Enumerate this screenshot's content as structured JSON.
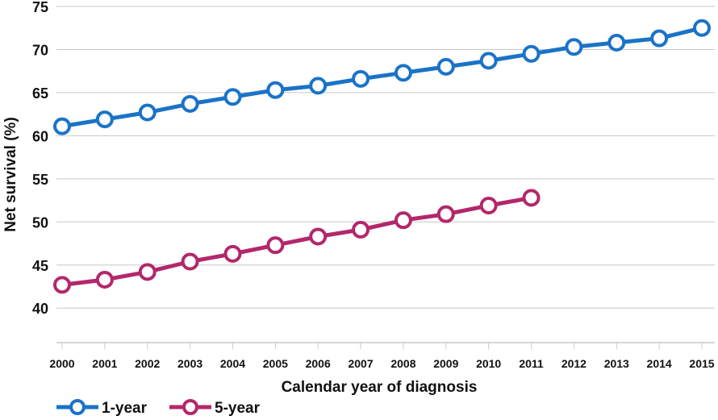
{
  "chart_data": {
    "type": "line",
    "xlabel": "Calendar year of diagnosis",
    "ylabel": "Net survival (%)",
    "ylim": [
      36,
      75
    ],
    "yticks": [
      40,
      45,
      50,
      55,
      60,
      65,
      70,
      75
    ],
    "grid": "horizontal",
    "legend_position": "bottom-left",
    "x": [
      "2000",
      "2001",
      "2002",
      "2003",
      "2004",
      "2005",
      "2006",
      "2007",
      "2008",
      "2009",
      "2010",
      "2011",
      "2012",
      "2013",
      "2014",
      "2015"
    ],
    "series": [
      {
        "name": "1-year",
        "color": "#1a73c8",
        "values": [
          61.1,
          61.9,
          62.7,
          63.7,
          64.5,
          65.3,
          65.8,
          66.6,
          67.3,
          68.0,
          68.7,
          69.5,
          70.3,
          70.8,
          71.3,
          72.5
        ]
      },
      {
        "name": "5-year",
        "color": "#b3276b",
        "values": [
          42.7,
          43.3,
          44.2,
          45.4,
          46.3,
          47.3,
          48.3,
          49.1,
          50.2,
          50.9,
          51.9,
          52.8,
          null,
          null,
          null,
          null
        ]
      }
    ]
  }
}
